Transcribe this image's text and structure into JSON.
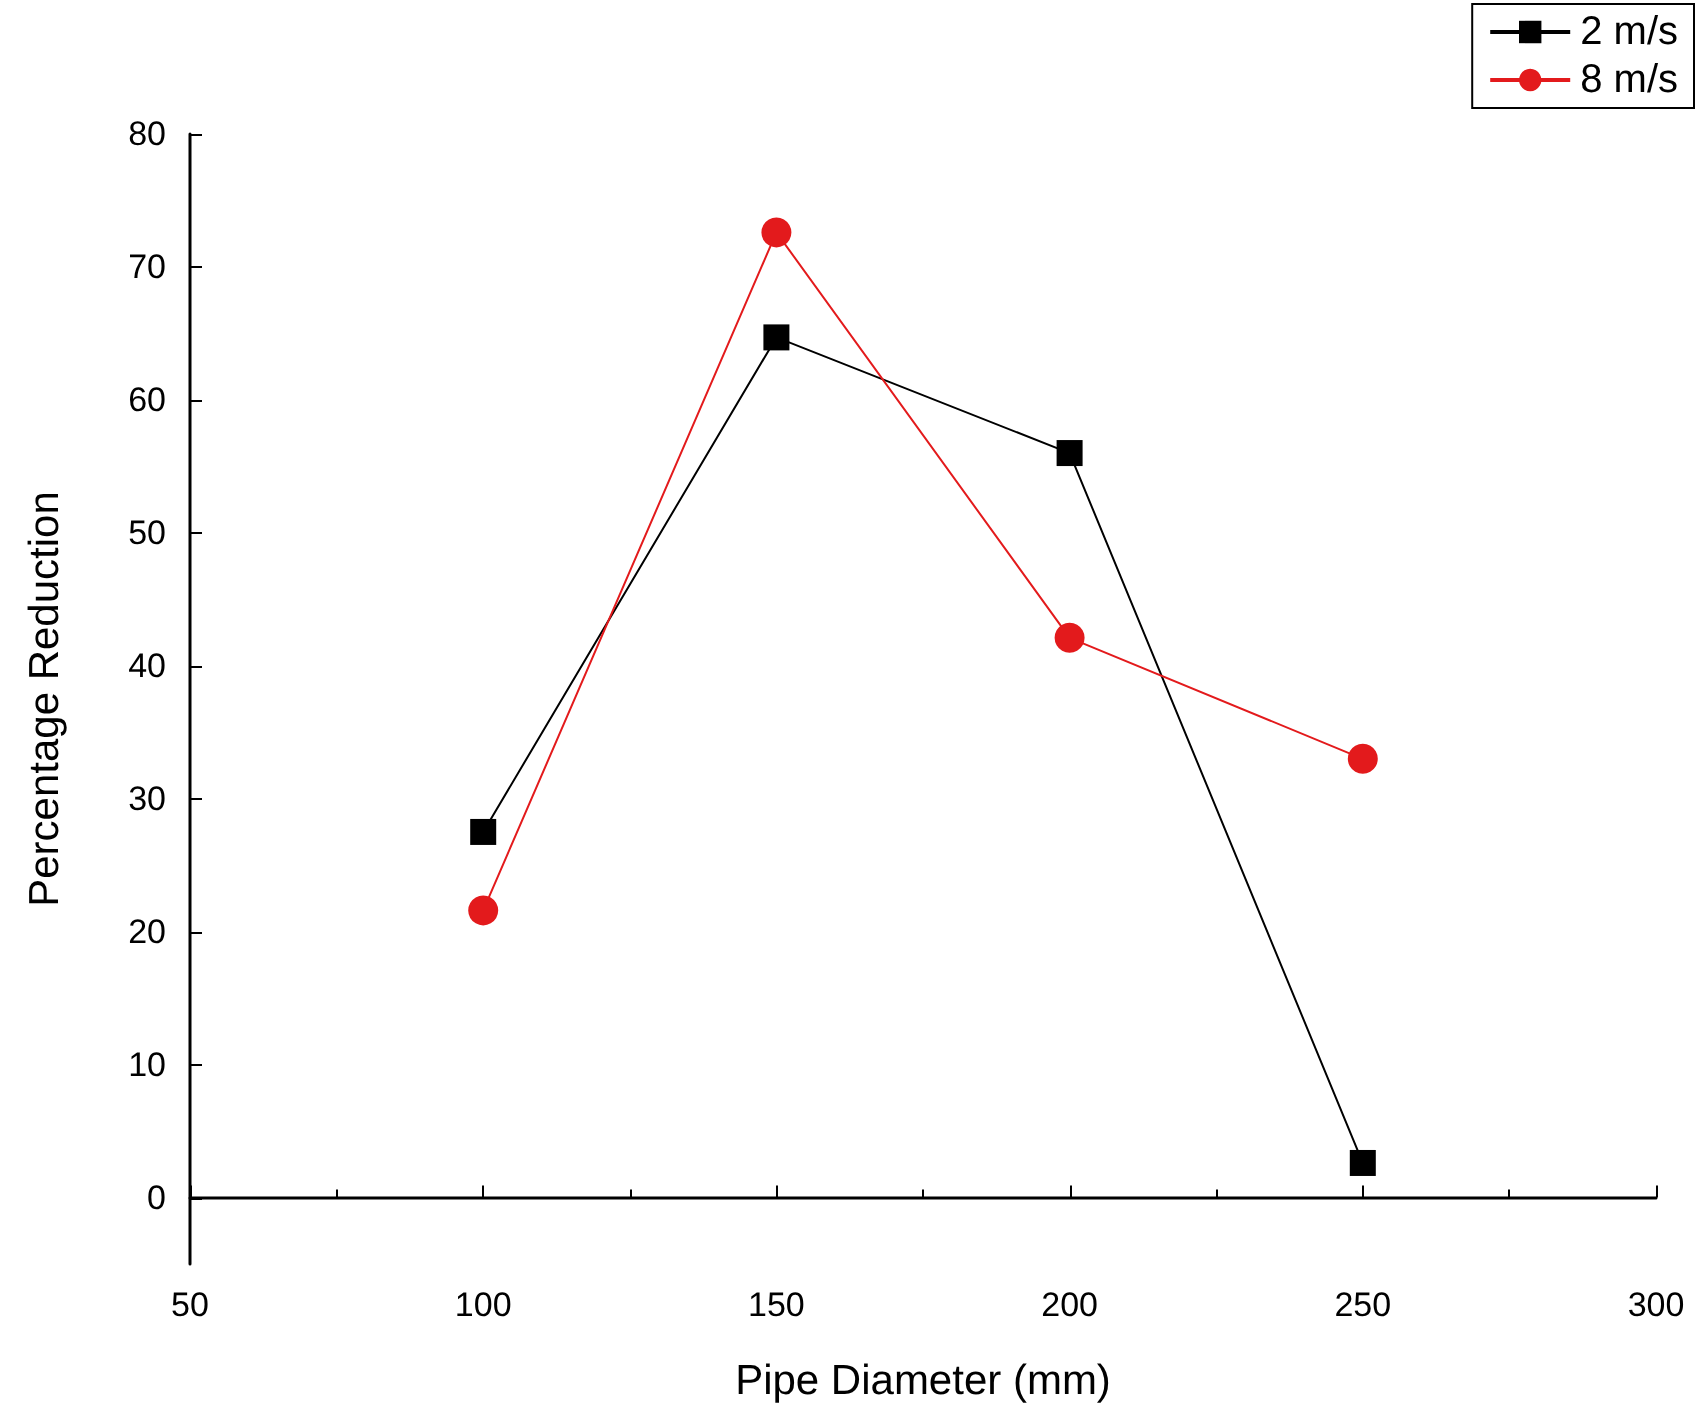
{
  "chart_data": {
    "type": "line",
    "xlabel": "Pipe Diameter (mm)",
    "ylabel": "Percentage Reduction",
    "x": [
      100,
      150,
      200,
      250
    ],
    "series": [
      {
        "name": "2 m/s",
        "color": "#000000",
        "marker": "square",
        "values": [
          27.5,
          64.7,
          56,
          2.6
        ]
      },
      {
        "name": "8 m/s",
        "color": "#e31a1c",
        "marker": "circle",
        "values": [
          21.6,
          72.6,
          42.1,
          33
        ]
      }
    ],
    "xlim": [
      50,
      300
    ],
    "xticks": [
      50,
      100,
      150,
      200,
      250,
      300
    ],
    "ylim": [
      -5,
      80
    ],
    "yticks": [
      0,
      10,
      20,
      30,
      40,
      50,
      60,
      70,
      80
    ],
    "grid": false,
    "legend": "top right"
  }
}
